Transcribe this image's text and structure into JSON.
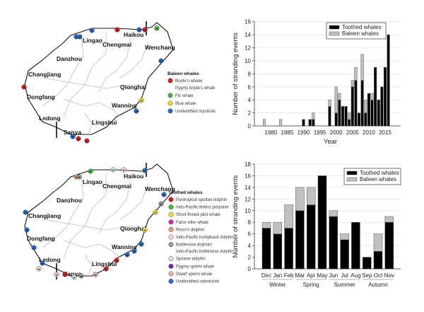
{
  "maps": [
    {
      "cities": [
        "Haikou",
        "Lingao",
        "Chengmai",
        "Wenchang",
        "Danzhou",
        "Changjiang",
        "Qionghai",
        "Dongfang",
        "Wanning",
        "Ledong",
        "Lingshui",
        "Sanya"
      ],
      "legend_title": "Baleen whales",
      "legend": [
        {
          "label": "Bryde's whale/",
          "label2": "Pygmy bryde's whale",
          "color": "#e01b1b"
        },
        {
          "label": "Fin whale",
          "color": "#3cc33c"
        },
        {
          "label": "Blue whale",
          "color": "#f0e020"
        },
        {
          "label": "Unidentified mysticeti",
          "color": "#1f6fd6"
        }
      ]
    },
    {
      "cities": [
        "Haikou",
        "Lingao",
        "Chengmai",
        "Wenchang",
        "Danzhou",
        "Changjiang",
        "Qionghai",
        "Dongfang",
        "Wanning",
        "Ledong",
        "Lingshui",
        "Sanya"
      ],
      "legend_title": "Toothed whales",
      "legend": [
        {
          "label": "Pantropical spotted dolphin",
          "color": "#e01b1b"
        },
        {
          "label": "Indo-Pacific finless porpoise",
          "color": "#3cc33c"
        },
        {
          "label": "Short-finned pilot whale",
          "color": "#f0e020"
        },
        {
          "label": "False killer whale",
          "color": "#e020c0"
        },
        {
          "label": "Risso's dolphin",
          "color": "#e8a080"
        },
        {
          "label": "Indo-Pacific humpback dolphin",
          "color": "#f8d8d8"
        },
        {
          "label": "Bottlenose dolphin/",
          "label2": "Indo-Pacific bottlenose dolphin",
          "color": "#9a9a9a"
        },
        {
          "label": "Spinner dolphin",
          "color": "#c8f0e0"
        },
        {
          "label": "Pygmy sperm whale",
          "color": "#8020c0"
        },
        {
          "label": "Dwarf sperm whale",
          "color": "#e8b0b0"
        },
        {
          "label": "Unidentified odontoceti",
          "color": "#1f6fd6"
        }
      ]
    }
  ],
  "chart_data": [
    {
      "type": "bar",
      "stacked": true,
      "xlabel": "Year",
      "ylabel": "Number of stranding events",
      "ylim": [
        0,
        16
      ],
      "yticks": [
        0,
        2,
        4,
        6,
        8,
        10,
        12,
        14,
        16
      ],
      "xticks": [
        1980,
        1985,
        1990,
        1995,
        2000,
        2005,
        2010,
        2015
      ],
      "legend_position": "top-right",
      "grid": true,
      "x": [
        1978,
        1983,
        1990,
        1992,
        1993,
        1998,
        2000,
        2001,
        2002,
        2003,
        2004,
        2005,
        2006,
        2007,
        2008,
        2009,
        2010,
        2011,
        2012,
        2013,
        2014,
        2015,
        2016
      ],
      "series": [
        {
          "name": "Toothed whales",
          "color": "#000000",
          "values": [
            0,
            0,
            1,
            1,
            1,
            3,
            2,
            4,
            3,
            3,
            1,
            6,
            7,
            2,
            7,
            2,
            5,
            4,
            9,
            4,
            6,
            9,
            14
          ]
        },
        {
          "name": "Baleen whales",
          "color": "#c0c0c0",
          "values": [
            1,
            1,
            0,
            0,
            1,
            1,
            4,
            1,
            0,
            0,
            1,
            1,
            2,
            0,
            4,
            2,
            0,
            1,
            0,
            0,
            0,
            0,
            0
          ]
        }
      ]
    },
    {
      "type": "bar",
      "stacked": true,
      "ylabel": "Number of stranding events",
      "ylim": [
        0,
        18
      ],
      "yticks": [
        0,
        2,
        4,
        6,
        8,
        10,
        12,
        14,
        16,
        18
      ],
      "legend_position": "top-right",
      "grid": true,
      "categories": [
        "Dec",
        "Jan",
        "Feb",
        "Mar",
        "Apr",
        "May",
        "Jun",
        "Jul",
        "Aug",
        "Sep",
        "Oct",
        "Nov"
      ],
      "seasons": [
        "Winter",
        "Spring",
        "Summer",
        "Autumn"
      ],
      "series": [
        {
          "name": "Toothed whales",
          "color": "#000000",
          "values": [
            7,
            6,
            7,
            10,
            11,
            16,
            9,
            5,
            8,
            2,
            3,
            8
          ]
        },
        {
          "name": "Baleen whales",
          "color": "#c0c0c0",
          "values": [
            1,
            2,
            4,
            4,
            3,
            0,
            1,
            1,
            0,
            0,
            3,
            1
          ]
        }
      ]
    }
  ]
}
